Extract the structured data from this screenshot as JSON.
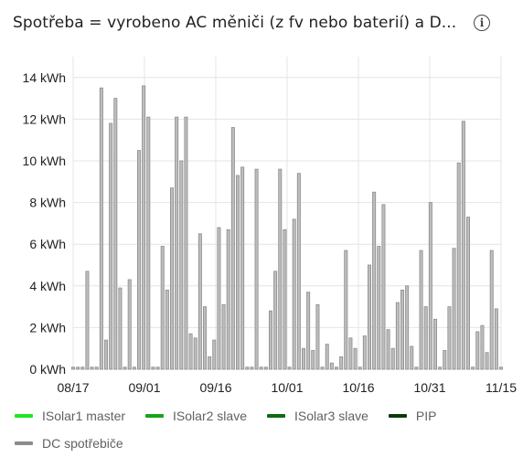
{
  "header": {
    "title": "Spotřeba = vyrobeno AC měniči (z fv nebo baterií) a D...",
    "info_icon": "info-icon",
    "info_glyph": "i"
  },
  "colors": {
    "isolar1": "#1ee81e",
    "isolar2": "#18a418",
    "isolar3": "#0e6b0e",
    "pip": "#0b3a0b",
    "dc": "#8c8c8c",
    "grid": "#e4e4e4"
  },
  "legend": [
    {
      "label": "ISolar1 master",
      "color": "#1ee81e"
    },
    {
      "label": "ISolar2 slave",
      "color": "#18a418"
    },
    {
      "label": "ISolar3 slave",
      "color": "#0e6b0e"
    },
    {
      "label": "PIP",
      "color": "#0b3a0b"
    },
    {
      "label": "DC spotřebiče",
      "color": "#8c8c8c"
    }
  ],
  "chart_data": {
    "type": "bar",
    "ylim": [
      0,
      15
    ],
    "y_ticks": [
      0,
      2,
      4,
      6,
      8,
      10,
      12,
      14
    ],
    "y_tick_labels": [
      "0 kWh",
      "2 kWh",
      "4 kWh",
      "6 kWh",
      "8 kWh",
      "10 kWh",
      "12 kWh",
      "14 kWh"
    ],
    "x_range": [
      "08/17",
      "11/15"
    ],
    "x_tick_labels": [
      "08/17",
      "09/01",
      "09/16",
      "10/01",
      "10/16",
      "10/31",
      "11/15"
    ],
    "grid": true,
    "series": [
      {
        "name": "DC spotřebiče",
        "values": [
          0.1,
          0.1,
          0.1,
          4.7,
          0.1,
          0.1,
          13.5,
          1.4,
          11.8,
          13.0,
          3.9,
          0.1,
          4.3,
          0.1,
          10.5,
          13.6,
          12.1,
          0.1,
          0.1,
          5.9,
          3.8,
          8.7,
          12.1,
          10.0,
          12.1,
          1.7,
          1.5,
          6.5,
          3.0,
          0.6,
          1.4,
          6.8,
          3.1,
          6.7,
          11.6,
          9.3,
          9.7,
          0.1,
          0.1,
          9.6,
          0.1,
          0.1,
          2.8,
          4.7,
          9.6,
          6.7,
          0.1,
          7.2,
          9.4,
          1.0,
          3.7,
          0.9,
          3.1,
          0.1,
          1.2,
          0.3,
          0.1,
          0.6,
          5.7,
          1.5,
          1.0,
          0.1,
          1.6,
          5.0,
          8.5,
          5.9,
          7.9,
          1.9,
          1.0,
          3.2,
          3.8,
          4.0,
          1.1,
          0.1,
          5.7,
          3.0,
          8.0,
          2.4,
          0.1,
          0.9,
          3.0,
          5.8,
          9.9,
          11.9,
          7.3,
          0.1,
          1.8,
          2.1,
          0.8,
          5.7,
          2.9,
          0.1
        ]
      }
    ]
  }
}
